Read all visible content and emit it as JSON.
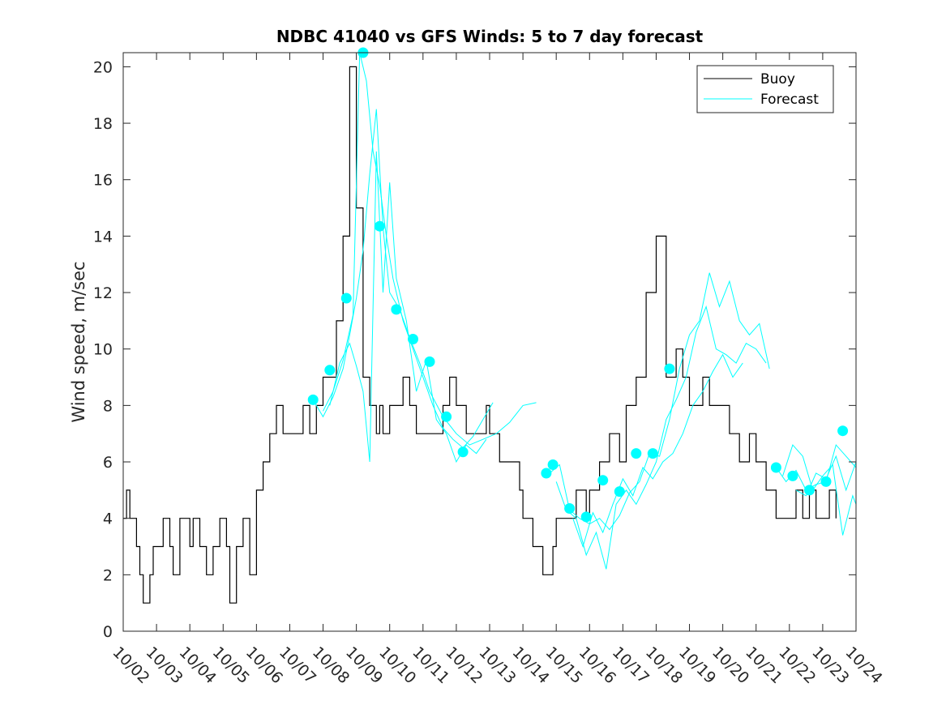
{
  "chart_data": {
    "type": "line",
    "title": "NDBC 41040 vs GFS Winds: 5 to 7 day forecast",
    "xlabel": "",
    "ylabel": "Wind speed, m/sec",
    "xlim": [
      0,
      22
    ],
    "ylim": [
      0,
      20.5
    ],
    "x_tick_values": [
      0,
      1,
      2,
      3,
      4,
      5,
      6,
      7,
      8,
      9,
      10,
      11,
      12,
      13,
      14,
      15,
      16,
      17,
      18,
      19,
      20,
      21,
      22
    ],
    "x_tick_labels": [
      "10/02",
      "10/03",
      "10/04",
      "10/05",
      "10/06",
      "10/07",
      "10/08",
      "10/09",
      "10/10",
      "10/11",
      "10/12",
      "10/13",
      "10/14",
      "10/15",
      "10/16",
      "10/17",
      "10/18",
      "10/19",
      "10/20",
      "10/21",
      "10/22",
      "10/23",
      "10/24"
    ],
    "y_ticks": [
      0,
      2,
      4,
      6,
      8,
      10,
      12,
      14,
      16,
      18,
      20
    ],
    "legend": {
      "position": "top-right",
      "entries": [
        {
          "label": "Buoy",
          "color": "#000000"
        },
        {
          "label": "Forecast",
          "color": "#00ffff"
        }
      ]
    },
    "series": [
      {
        "name": "Buoy",
        "color": "#000000",
        "x": [
          0,
          0.1,
          0.2,
          0.3,
          0.4,
          0.5,
          0.6,
          0.7,
          0.8,
          0.9,
          1.0,
          1.2,
          1.4,
          1.5,
          1.7,
          1.9,
          2.0,
          2.1,
          2.3,
          2.5,
          2.7,
          2.9,
          3.1,
          3.2,
          3.4,
          3.6,
          3.8,
          4.0,
          4.2,
          4.4,
          4.6,
          4.8,
          5.0,
          5.2,
          5.4,
          5.6,
          5.8,
          6.0,
          6.2,
          6.4,
          6.6,
          6.8,
          7.0,
          7.2,
          7.4,
          7.6,
          7.7,
          7.8,
          7.9,
          8.0,
          8.2,
          8.4,
          8.6,
          8.8,
          9.0,
          9.3,
          9.6,
          9.8,
          10.0,
          10.3,
          10.6,
          10.9,
          11.0,
          11.3,
          11.6,
          11.9,
          12.0,
          12.3,
          12.6,
          12.9,
          13.0,
          13.1,
          13.3,
          13.6,
          13.9,
          14.0,
          14.3,
          14.6,
          14.9,
          15.1,
          15.4,
          15.7,
          16.0,
          16.3,
          16.6,
          16.8,
          16.9,
          17.0,
          17.2,
          17.4,
          17.6,
          17.9,
          18.2,
          18.5,
          18.8,
          19.0,
          19.3,
          19.6,
          19.9,
          20.2,
          20.4,
          20.6,
          20.8,
          21.0,
          21.2,
          21.4
        ],
        "y": [
          4,
          5,
          4,
          4,
          3,
          2,
          1,
          1,
          2,
          3,
          3,
          4,
          3,
          2,
          4,
          4,
          3,
          4,
          3,
          2,
          3,
          4,
          3,
          1,
          3,
          4,
          2,
          5,
          6,
          7,
          8,
          7,
          7,
          7,
          8,
          7,
          8,
          9,
          9,
          11,
          14,
          20,
          15,
          9,
          8,
          7,
          8,
          7,
          7,
          8,
          8,
          9,
          8,
          7,
          7,
          7,
          8,
          9,
          8,
          7,
          7,
          8,
          7,
          6,
          6,
          5,
          4,
          3,
          2,
          3,
          4,
          4,
          4,
          5,
          4,
          5,
          6,
          7,
          6,
          8,
          9,
          12,
          14,
          9,
          10,
          9,
          9,
          8,
          8,
          9,
          8,
          8,
          7,
          6,
          7,
          6,
          5,
          4,
          4,
          5,
          4,
          5,
          4,
          4,
          5,
          4
        ]
      },
      {
        "name": "Forecast run 1",
        "color": "#00ffff",
        "x": [
          5.7,
          6.0,
          6.3,
          6.6,
          6.8,
          7.0,
          7.2,
          7.4,
          7.6,
          7.8,
          8.0,
          8.3,
          8.6,
          8.9,
          9.2,
          9.6,
          10.0,
          10.4,
          10.8,
          11.2,
          11.6,
          12.0,
          12.4
        ],
        "y": [
          8.2,
          7.6,
          8.3,
          9.3,
          10.5,
          11.8,
          13.5,
          16.2,
          18.5,
          14.3,
          12.0,
          11.4,
          10.4,
          9.5,
          8.5,
          7.6,
          7.0,
          6.6,
          6.8,
          7.0,
          7.4,
          8.0,
          8.1
        ]
      },
      {
        "name": "Forecast run 2",
        "color": "#00ffff",
        "x": [
          6.0,
          6.3,
          6.6,
          6.9,
          7.1,
          7.3,
          7.5,
          7.7,
          7.9,
          8.1,
          8.4,
          8.7,
          9.0,
          9.3,
          9.6,
          9.9,
          10.2,
          10.5,
          10.8,
          11.1
        ],
        "y": [
          7.8,
          8.5,
          9.6,
          11.2,
          20.5,
          19.5,
          17.0,
          15.8,
          14.0,
          12.5,
          11.0,
          10.0,
          9.0,
          8.0,
          7.2,
          6.8,
          6.5,
          6.9,
          7.5,
          8.1
        ]
      },
      {
        "name": "Forecast run 3",
        "color": "#00ffff",
        "x": [
          6.2,
          6.5,
          6.8,
          7.0,
          7.2,
          7.4,
          7.6,
          7.8,
          8.0,
          8.2,
          8.5,
          8.8,
          9.1,
          9.4,
          9.7,
          10.0,
          10.3,
          10.6,
          10.9
        ],
        "y": [
          8.0,
          9.5,
          10.2,
          9.4,
          8.5,
          6.0,
          17.0,
          12.0,
          15.9,
          12.5,
          11.0,
          8.5,
          9.6,
          7.5,
          7.0,
          6.0,
          6.6,
          6.3,
          6.8
        ]
      },
      {
        "name": "Forecast run 4",
        "color": "#00ffff",
        "x": [
          12.8,
          13.1,
          13.4,
          13.7,
          14.0,
          14.3,
          14.6,
          14.9,
          15.2,
          15.5,
          15.8,
          16.1,
          16.4,
          16.7,
          17.0,
          17.3,
          17.6,
          17.9,
          18.2,
          18.5,
          18.8,
          19.1,
          19.4
        ],
        "y": [
          5.6,
          5.9,
          4.3,
          4.0,
          3.8,
          4.0,
          3.6,
          4.1,
          4.9,
          5.3,
          6.3,
          6.2,
          7.5,
          9.3,
          10.5,
          11.0,
          12.7,
          11.5,
          12.4,
          11.0,
          10.5,
          10.9,
          9.3
        ]
      },
      {
        "name": "Forecast run 5",
        "color": "#00ffff",
        "x": [
          13.0,
          13.3,
          13.6,
          13.9,
          14.2,
          14.5,
          14.8,
          15.1,
          15.4,
          15.7,
          16.0,
          16.3,
          16.6,
          16.9,
          17.2,
          17.5,
          17.8,
          18.1,
          18.4,
          18.7,
          19.0,
          19.3
        ],
        "y": [
          5.3,
          4.3,
          4.0,
          2.7,
          3.5,
          2.2,
          4.5,
          5.0,
          4.5,
          5.2,
          6.0,
          7.5,
          8.2,
          9.0,
          10.6,
          11.5,
          10.0,
          9.8,
          9.5,
          10.2,
          10.0,
          9.5
        ]
      },
      {
        "name": "Forecast run 6",
        "color": "#00ffff",
        "x": [
          13.5,
          13.8,
          14.1,
          14.4,
          14.7,
          15.0,
          15.3,
          15.6,
          15.9,
          16.2,
          16.5,
          16.8,
          17.1,
          17.4,
          17.7,
          18.0,
          18.3,
          18.6
        ],
        "y": [
          4.0,
          3.0,
          4.2,
          3.5,
          4.5,
          5.4,
          4.8,
          5.8,
          5.4,
          6.0,
          6.3,
          7.0,
          8.0,
          8.5,
          9.2,
          9.8,
          9.0,
          9.5
        ]
      },
      {
        "name": "Forecast run 7",
        "color": "#00ffff",
        "x": [
          19.6,
          19.9,
          20.2,
          20.5,
          20.8,
          21.1,
          21.4,
          21.7,
          22.0
        ],
        "y": [
          5.8,
          5.3,
          5.7,
          5.0,
          5.2,
          5.3,
          6.6,
          6.2,
          5.8
        ]
      },
      {
        "name": "Forecast run 8",
        "color": "#00ffff",
        "x": [
          19.8,
          20.1,
          20.4,
          20.7,
          21.0,
          21.3,
          21.6,
          21.9,
          22.0
        ],
        "y": [
          5.5,
          6.6,
          6.2,
          5.0,
          5.5,
          5.9,
          3.4,
          4.8,
          4.5
        ]
      },
      {
        "name": "Forecast run 9",
        "color": "#00ffff",
        "x": [
          20.2,
          20.5,
          20.8,
          21.1,
          21.4,
          21.7,
          22.0
        ],
        "y": [
          5.0,
          4.8,
          5.6,
          5.4,
          6.2,
          5.0,
          6.0
        ]
      }
    ],
    "forecast_markers": {
      "color": "#00ffff",
      "x": [
        5.7,
        6.2,
        6.7,
        7.2,
        7.7,
        8.2,
        8.7,
        9.2,
        9.7,
        10.2,
        12.7,
        12.9,
        13.4,
        13.9,
        14.4,
        14.9,
        15.4,
        15.9,
        16.4,
        19.6,
        20.1,
        20.6,
        21.1,
        21.6
      ],
      "y": [
        8.2,
        9.25,
        11.8,
        20.5,
        14.35,
        11.4,
        10.35,
        9.55,
        7.6,
        6.35,
        5.6,
        5.9,
        4.35,
        4.05,
        5.35,
        4.95,
        6.3,
        6.3,
        9.3,
        5.8,
        5.5,
        5.0,
        5.3,
        7.1
      ]
    }
  }
}
